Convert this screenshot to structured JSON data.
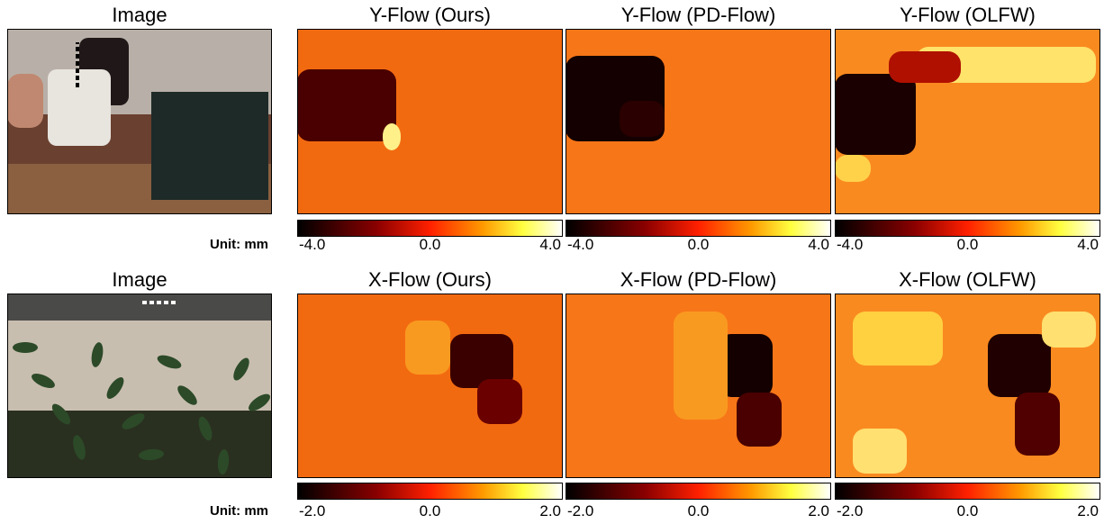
{
  "rows": [
    {
      "image_title": "Image",
      "unit": "Unit: mm",
      "panels": [
        {
          "title": "Y-Flow (Ours)",
          "scale": [
            "-4.0",
            "0.0",
            "4.0"
          ]
        },
        {
          "title": "Y-Flow (PD-Flow)",
          "scale": [
            "-4.0",
            "0.0",
            "4.0"
          ]
        },
        {
          "title": "Y-Flow (OLFW)",
          "scale": [
            "-4.0",
            "0.0",
            "4.0"
          ]
        }
      ]
    },
    {
      "image_title": "Image",
      "unit": "Unit: mm",
      "panels": [
        {
          "title": "X-Flow (Ours)",
          "scale": [
            "-2.0",
            "0.0",
            "2.0"
          ]
        },
        {
          "title": "X-Flow (PD-Flow)",
          "scale": [
            "-2.0",
            "0.0",
            "2.0"
          ]
        },
        {
          "title": "X-Flow (OLFW)",
          "scale": [
            "-2.0",
            "0.0",
            "2.0"
          ]
        }
      ]
    }
  ]
}
